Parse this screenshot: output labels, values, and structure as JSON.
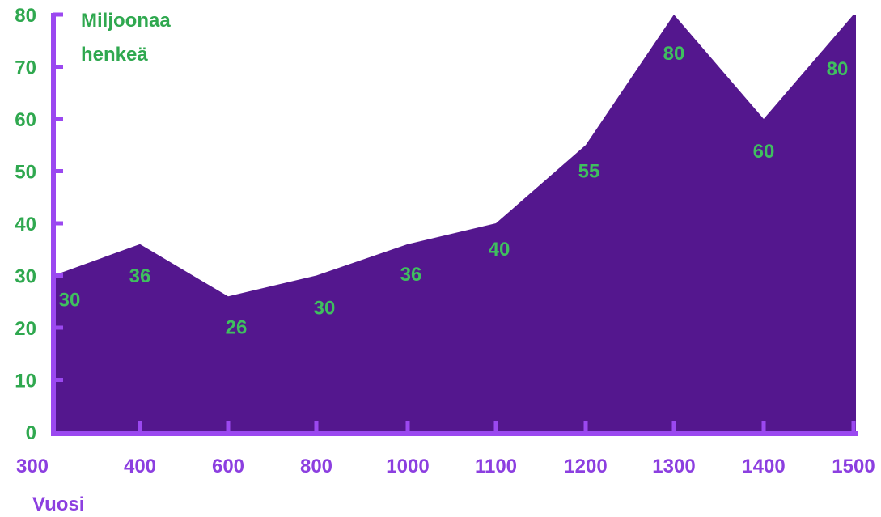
{
  "chart_data": {
    "type": "area",
    "categories": [
      "300",
      "400",
      "600",
      "800",
      "1000",
      "1100",
      "1200",
      "1300",
      "1400",
      "1500"
    ],
    "values": [
      30,
      36,
      26,
      30,
      36,
      40,
      55,
      80,
      60,
      80
    ],
    "data_labels": [
      "30",
      "36",
      "26",
      "30",
      "36",
      "40",
      "55",
      "80",
      "60",
      "80"
    ],
    "ylabel_lines": [
      "Miljoonaa",
      "henkeä"
    ],
    "xlabel": "Vuosi",
    "ylim": [
      0,
      80
    ],
    "yticks": [
      "0",
      "10",
      "20",
      "30",
      "40",
      "50",
      "60",
      "70",
      "80"
    ],
    "grid": false,
    "colors": {
      "area": "#54178e",
      "axis": "#9b48f0",
      "y_text": "#2fa84f",
      "x_text": "#8c3fe0",
      "data_label": "#3fbf5f"
    }
  }
}
